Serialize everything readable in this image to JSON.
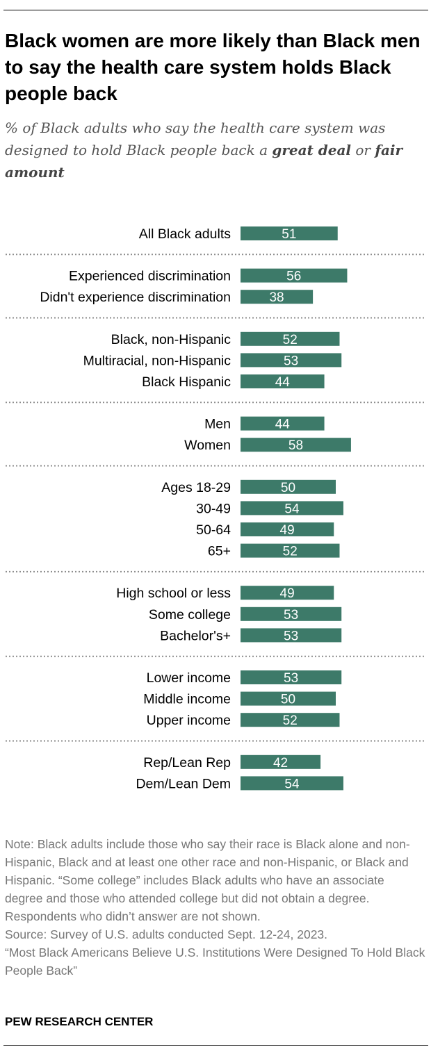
{
  "title": "Black women are more likely than Black men to say the health care system holds Black people back",
  "subtitle": {
    "prefix": "% of Black adults who say the health care system was designed to hold Black people back a ",
    "emph1": "great deal",
    "middle": " or ",
    "emph2": "fair amount"
  },
  "colors": {
    "bar": "#3d7a69",
    "bar_label": "#ffffff",
    "divider": "#8c8c8c"
  },
  "chart_data": {
    "type": "bar",
    "orientation": "horizontal",
    "xlim": [
      0,
      100
    ],
    "groups": [
      {
        "categories": [
          "All Black adults"
        ],
        "values": [
          51
        ]
      },
      {
        "categories": [
          "Experienced discrimination",
          "Didn't experience discrimination"
        ],
        "values": [
          56,
          38
        ]
      },
      {
        "categories": [
          "Black, non-Hispanic",
          "Multiracial, non-Hispanic",
          "Black Hispanic"
        ],
        "values": [
          52,
          53,
          44
        ]
      },
      {
        "categories": [
          "Men",
          "Women"
        ],
        "values": [
          44,
          58
        ]
      },
      {
        "categories": [
          "Ages 18-29",
          "30-49",
          "50-64",
          "65+"
        ],
        "values": [
          50,
          54,
          49,
          52
        ]
      },
      {
        "categories": [
          "High school or less",
          "Some college",
          "Bachelor's+"
        ],
        "values": [
          49,
          53,
          53
        ]
      },
      {
        "categories": [
          "Lower income",
          "Middle income",
          "Upper income"
        ],
        "values": [
          53,
          50,
          52
        ]
      },
      {
        "categories": [
          "Rep/Lean Rep",
          "Dem/Lean Dem"
        ],
        "values": [
          42,
          54
        ]
      }
    ]
  },
  "note": "Note: Black adults include those who say their race is Black alone and non-Hispanic, Black and at least one other race and non-Hispanic, or Black and Hispanic. “Some college” includes Black adults who have an associate degree and those who attended college but did not obtain a degree. Respondents who didn’t answer are not shown.",
  "source": "Source: Survey of U.S. adults conducted Sept. 12-24, 2023.",
  "report": "“Most Black Americans Believe U.S. Institutions Were Designed To Hold Black People Back”",
  "brand": "PEW RESEARCH CENTER"
}
